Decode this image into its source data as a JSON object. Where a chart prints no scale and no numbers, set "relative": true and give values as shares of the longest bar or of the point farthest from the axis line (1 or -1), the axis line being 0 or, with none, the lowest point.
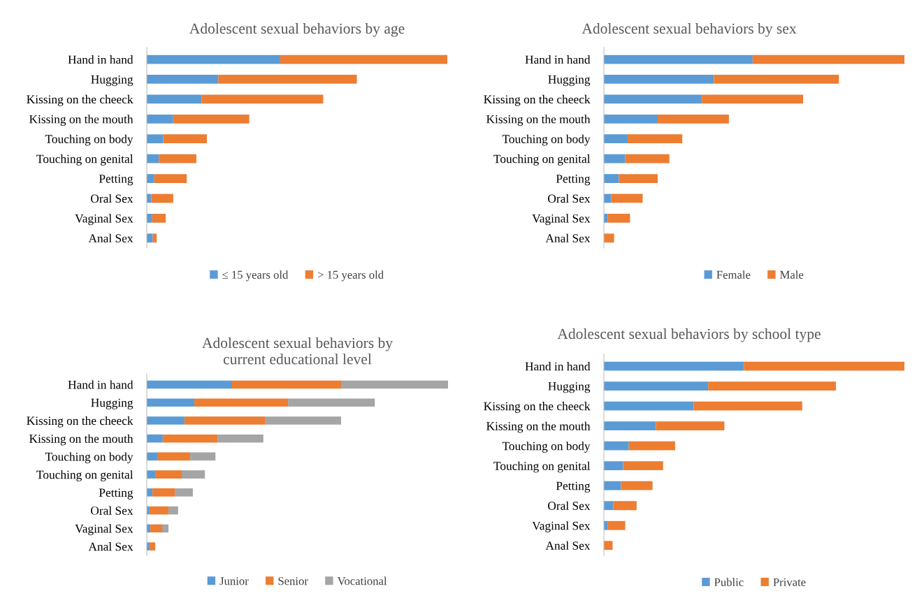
{
  "chart_data": [
    {
      "type": "bar",
      "orientation": "horizontal",
      "stacked": true,
      "relative": true,
      "title": "Adolescent sexual behaviors by age",
      "legend": "bottom",
      "grid": false,
      "categories": [
        "Hand in hand",
        "Hugging",
        "Kissing on the cheeck",
        "Kissing on the mouth",
        "Touching on body",
        "Touching on genital",
        "Petting",
        "Oral Sex",
        "Vaginal Sex",
        "Anal Sex"
      ],
      "series": [
        {
          "name": "≤ 15 years old",
          "color": "#5b9bd5",
          "values": [
            0.444,
            0.238,
            0.183,
            0.088,
            0.055,
            0.04,
            0.025,
            0.015,
            0.018,
            0.02
          ]
        },
        {
          "name": "> 15 years old",
          "color": "#ed7d31",
          "values": [
            0.556,
            0.461,
            0.404,
            0.253,
            0.145,
            0.125,
            0.108,
            0.073,
            0.045,
            0.013
          ]
        }
      ]
    },
    {
      "type": "bar",
      "orientation": "horizontal",
      "stacked": true,
      "relative": true,
      "title": "Adolescent sexual behaviors by sex",
      "legend": "bottom",
      "grid": false,
      "categories": [
        "Hand in hand",
        "Hugging",
        "Kissing on the cheeck",
        "Kissing on the mouth",
        "Touching on body",
        "Touching on genital",
        "Petting",
        "Oral Sex",
        "Vaginal Sex",
        "Anal Sex"
      ],
      "series": [
        {
          "name": "Female",
          "color": "#5b9bd5",
          "values": [
            0.495,
            0.366,
            0.326,
            0.179,
            0.079,
            0.071,
            0.05,
            0.024,
            0.013,
            0
          ]
        },
        {
          "name": "Male",
          "color": "#ed7d31",
          "values": [
            0.505,
            0.416,
            0.337,
            0.237,
            0.182,
            0.147,
            0.129,
            0.105,
            0.074,
            0.034
          ]
        }
      ]
    },
    {
      "type": "bar",
      "orientation": "horizontal",
      "stacked": true,
      "relative": true,
      "title": "Adolescent sexual behaviors by\ncurrent educational level",
      "legend": "bottom",
      "grid": false,
      "categories": [
        "Hand in hand",
        "Hugging",
        "Kissing on the cheeck",
        "Kissing on the mouth",
        "Touching on body",
        "Touching on genital",
        "Petting",
        "Oral Sex",
        "Vaginal Sex",
        "Anal Sex"
      ],
      "series": [
        {
          "name": "Junior",
          "color": "#5b9bd5",
          "values": [
            0.283,
            0.158,
            0.125,
            0.053,
            0.035,
            0.028,
            0.019,
            0.009,
            0.012,
            0.009
          ]
        },
        {
          "name": "Senior",
          "color": "#ed7d31",
          "values": [
            0.362,
            0.311,
            0.269,
            0.183,
            0.109,
            0.088,
            0.074,
            0.063,
            0.039,
            0.019
          ]
        },
        {
          "name": "Vocational",
          "color": "#a5a5a5",
          "values": [
            0.355,
            0.288,
            0.251,
            0.151,
            0.084,
            0.077,
            0.06,
            0.032,
            0.021,
            0
          ]
        }
      ]
    },
    {
      "type": "bar",
      "orientation": "horizontal",
      "stacked": true,
      "relative": true,
      "title": "Adolescent sexual behaviors by school type",
      "legend": "bottom",
      "grid": false,
      "categories": [
        "Hand in hand",
        "Hugging",
        "Kissing on the cheeck",
        "Kissing on the mouth",
        "Touching on body",
        "Touching on genital",
        "Petting",
        "Oral Sex",
        "Vaginal Sex",
        "Anal Sex"
      ],
      "series": [
        {
          "name": "Public",
          "color": "#5b9bd5",
          "values": [
            0.466,
            0.347,
            0.299,
            0.173,
            0.083,
            0.064,
            0.057,
            0.031,
            0.012,
            0
          ]
        },
        {
          "name": "Private",
          "color": "#ed7d31",
          "values": [
            0.534,
            0.425,
            0.361,
            0.228,
            0.154,
            0.133,
            0.105,
            0.078,
            0.059,
            0.029
          ]
        }
      ]
    }
  ]
}
